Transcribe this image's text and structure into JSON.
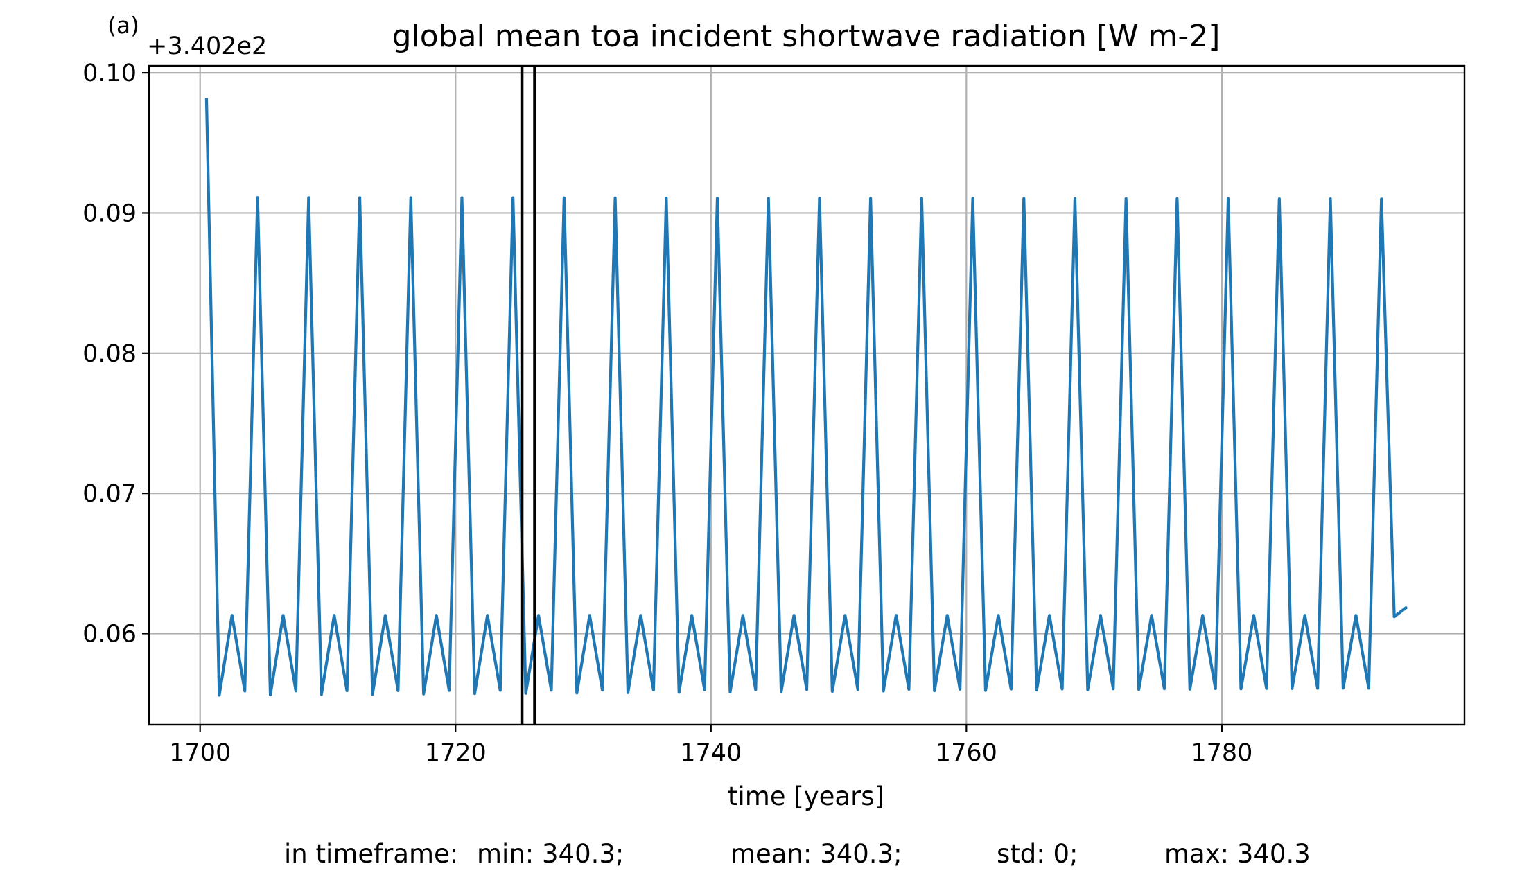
{
  "panel_label": "(a)",
  "offset_text": "+3.402e2",
  "stats": {
    "prefix": "in timeframe:",
    "min": "min: 340.3;",
    "mean": "mean: 340.3;",
    "std": "std: 0;",
    "max": "max: 340.3"
  },
  "colors": {
    "series": "#1f77b4",
    "grid": "#b0b0b0",
    "marker": "#000000"
  },
  "chart_data": {
    "type": "line",
    "title": "global mean toa incident shortwave radiation [W m-2]",
    "xlabel": "time [years]",
    "ylabel": "",
    "y_offset": 340.2,
    "xlim": [
      1696,
      1799
    ],
    "ylim": [
      0.0535,
      0.1005
    ],
    "xticks": [
      1700,
      1720,
      1740,
      1760,
      1780
    ],
    "xtick_labels": [
      "1700",
      "1720",
      "1740",
      "1760",
      "1780"
    ],
    "yticks": [
      0.06,
      0.07,
      0.08,
      0.09,
      0.1
    ],
    "ytick_labels": [
      "0.06",
      "0.07",
      "0.08",
      "0.09",
      "0.10"
    ],
    "grid": true,
    "vertical_markers": [
      1725.2,
      1726.2
    ],
    "series": [
      {
        "first_point": {
          "x": 1700.5,
          "y": 0.0982
        },
        "cycle_start": 1701.5,
        "cycle_length_years": 4,
        "cycles": 23,
        "cycle_offsets_years": [
          0,
          1,
          2,
          3
        ],
        "cycle_values_first": [
          0.0556,
          0.0613,
          0.0559,
          0.0911
        ],
        "cycle_values_last": [
          0.0561,
          0.0613,
          0.0561,
          0.091
        ],
        "last_points": [
          {
            "x": 1793.5,
            "y": 0.0612
          },
          {
            "x": 1794.5,
            "y": 0.0619
          }
        ]
      }
    ]
  }
}
